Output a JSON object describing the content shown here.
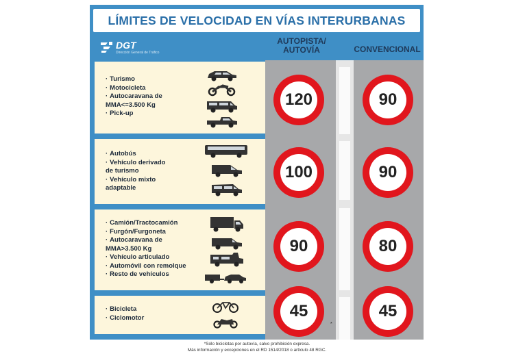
{
  "title": "LÍMITES DE VELOCIDAD  EN VÍAS INTERURBANAS",
  "logo": {
    "name": "DGT",
    "subtitle": "Dirección General de Tráfico"
  },
  "columns": {
    "autopista": "AUTOPISTA/ AUTOVÍA",
    "convencional": "CONVENCIONAL"
  },
  "rows": [
    {
      "items": [
        "Turismo",
        "Motocicleta",
        "Autocaravana de",
        "MMA<=3.500 Kg",
        "Pick-up"
      ],
      "bullets": [
        true,
        true,
        true,
        false,
        true
      ],
      "icons": [
        "car-icon",
        "motorcycle-icon",
        "van-icon",
        "pickup-icon"
      ],
      "autopista": "120",
      "convencional": "90"
    },
    {
      "items": [
        "Autobús",
        "Vehículo derivado",
        "de turismo",
        "Vehículo mixto",
        "adaptable"
      ],
      "bullets": [
        true,
        true,
        false,
        true,
        false
      ],
      "icons": [
        "bus-icon",
        "van-icon",
        "minivan-icon"
      ],
      "autopista": "100",
      "convencional": "90"
    },
    {
      "items": [
        "Camión/Tractocamión",
        "Furgón/Furgoneta",
        "Autocaravana de",
        "MMA>3.500 Kg",
        "Vehículo articulado",
        "Automóvil con remolque",
        "Resto de vehículos"
      ],
      "bullets": [
        true,
        true,
        true,
        false,
        true,
        true,
        true
      ],
      "icons": [
        "truck-icon",
        "van-icon",
        "motorhome-icon",
        "trailer-icon"
      ],
      "autopista": "90",
      "convencional": "80"
    },
    {
      "items": [
        "Bicicleta",
        "Ciclomotor"
      ],
      "bullets": [
        true,
        true
      ],
      "icons": [
        "bicycle-icon",
        "moped-icon"
      ],
      "autopista": "45",
      "convencional": "45"
    }
  ],
  "asterisk": "*",
  "footnote": {
    "line1": "*Sólo bicicletas por autovía, salvo prohibición expresa.",
    "line2": "Más información y excepciones en el RD 1514/2018 o artículo 48 RGC."
  },
  "colors": {
    "frame": "#3f8fc6",
    "panel": "#fdf6dc",
    "sign_ring": "#e1161d",
    "road": "#a7a8aa",
    "title": "#2a6fa8"
  }
}
